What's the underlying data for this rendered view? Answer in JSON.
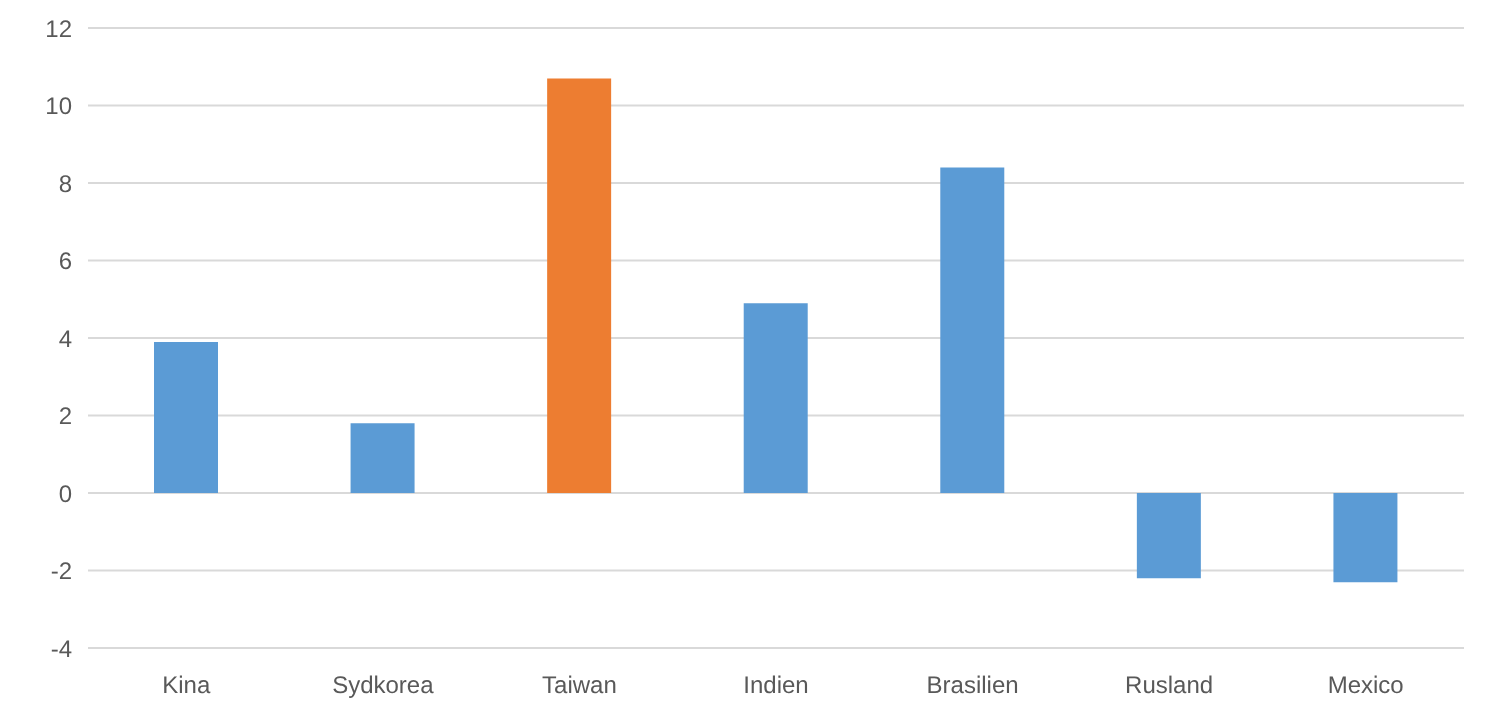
{
  "chart_data": {
    "type": "bar",
    "categories": [
      "Kina",
      "Sydkorea",
      "Taiwan",
      "Indien",
      "Brasilien",
      "Rusland",
      "Mexico"
    ],
    "values": [
      3.9,
      1.8,
      10.7,
      4.9,
      8.4,
      -2.2,
      -2.3
    ],
    "colors": [
      "#5b9bd5",
      "#5b9bd5",
      "#ed7d31",
      "#5b9bd5",
      "#5b9bd5",
      "#5b9bd5",
      "#5b9bd5"
    ],
    "ylim": [
      -4,
      12
    ],
    "yticks": [
      -4,
      -2,
      0,
      2,
      4,
      6,
      8,
      10,
      12
    ],
    "grid": "y"
  }
}
